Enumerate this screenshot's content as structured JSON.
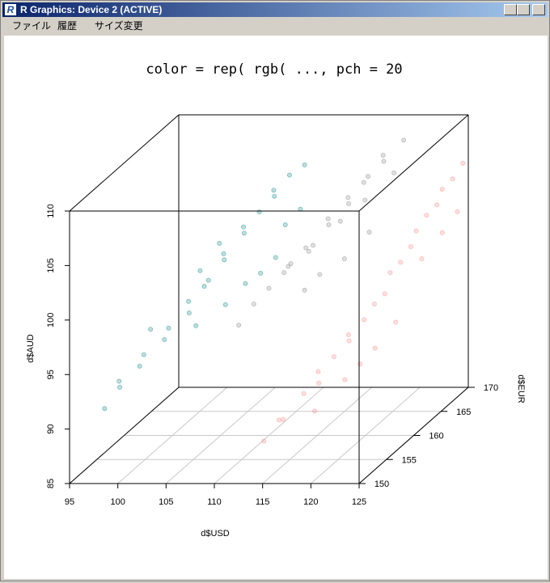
{
  "window": {
    "title": "R Graphics: Device 2 (ACTIVE)",
    "menu": [
      "ファイル",
      "履歴",
      "サイズ変更"
    ]
  },
  "chart_data": {
    "type": "scatter3d",
    "title": "color = rep( rgb( ..., pch = 20",
    "xlabel": "d$USD",
    "ylabel": "d$EUR",
    "zlabel": "d$AUD",
    "xlim": [
      95,
      125
    ],
    "ylim": [
      150,
      170
    ],
    "zlim": [
      85,
      110
    ],
    "xticks": [
      95,
      100,
      105,
      110,
      115,
      120,
      125
    ],
    "yticks": [
      150,
      155,
      160,
      165,
      170
    ],
    "zticks": [
      85,
      90,
      95,
      100,
      105,
      110
    ],
    "grid": true,
    "series": [
      {
        "color": "rgba(0,128,128,0.25)",
        "x": [
          97.5,
          98.5,
          99,
          100,
          101,
          102,
          103,
          104,
          104.5,
          105,
          106,
          106.5,
          107,
          108,
          108.5,
          109,
          110,
          110.5,
          111,
          112,
          105.5,
          107,
          108,
          109,
          103,
          106,
          104,
          110,
          111,
          100
        ],
        "y": [
          152,
          153,
          152,
          154,
          153,
          155,
          154,
          156,
          155,
          157,
          156,
          158,
          157,
          159,
          158,
          160,
          161,
          160,
          162,
          163,
          160,
          161,
          162,
          163,
          159,
          158,
          158,
          163,
          164,
          156
        ],
        "z": [
          91,
          92.5,
          93.5,
          94,
          95.5,
          96,
          97.5,
          98,
          99.5,
          100,
          101,
          102,
          103,
          104,
          105,
          105.5,
          106.5,
          107.5,
          108,
          108.5,
          97,
          98.5,
          99,
          100,
          95.5,
          103.5,
          101,
          103,
          104,
          96.5
        ]
      },
      {
        "color": "rgba(128,128,128,0.25)",
        "x": [
          108,
          109,
          110,
          111,
          112,
          113,
          114,
          114.5,
          115,
          116,
          116.5,
          117,
          118,
          118.5,
          119,
          120,
          112,
          113,
          115,
          117,
          110,
          111,
          114,
          116,
          119
        ],
        "y": [
          158,
          159,
          160,
          161,
          160,
          162,
          161,
          163,
          162,
          164,
          163,
          165,
          164,
          166,
          165,
          167,
          163,
          164,
          165,
          166,
          164,
          165,
          166,
          167,
          167
        ],
        "z": [
          96,
          97.5,
          98.5,
          99.5,
          100.5,
          101,
          102,
          103,
          104,
          104.5,
          105.5,
          106,
          107,
          107.5,
          108.5,
          109,
          97,
          98,
          99,
          101,
          99,
          100,
          102,
          103.5,
          106
        ]
      },
      {
        "color": "rgba(255,128,128,0.25)",
        "x": [
          114,
          115,
          116,
          117,
          118,
          118.5,
          119,
          120,
          120.5,
          121,
          121.5,
          122,
          122,
          122.5,
          123,
          123,
          123.5,
          124,
          124,
          124.5,
          125,
          119,
          120,
          121,
          122,
          117,
          123,
          124,
          125
        ],
        "y": [
          152,
          153,
          152,
          154,
          155,
          154,
          156,
          157,
          156,
          158,
          159,
          160,
          161,
          162,
          163,
          164,
          165,
          166,
          167,
          168,
          169,
          158,
          159,
          160,
          162,
          156,
          165,
          167,
          168
        ],
        "z": [
          88,
          89.5,
          90,
          91.5,
          92,
          93.5,
          94,
          95,
          96,
          96.5,
          97.5,
          98,
          99.5,
          100,
          101,
          102,
          103,
          103.5,
          104.5,
          105,
          106,
          91,
          92,
          93,
          94.5,
          89,
          99,
          100.5,
          102
        ]
      }
    ]
  }
}
